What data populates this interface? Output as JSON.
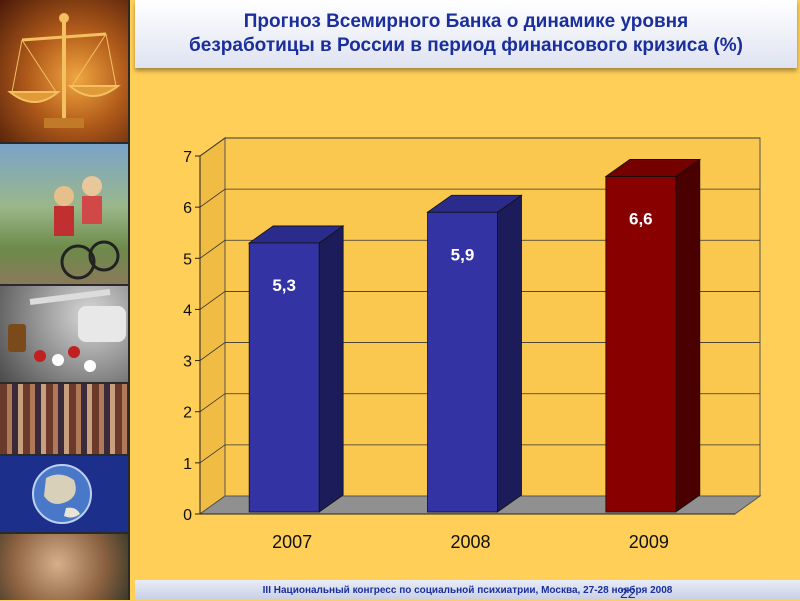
{
  "title": "Прогноз Всемирного Банка о динамике уровня\nбезработицы в России в период финансового кризиса (%)",
  "footer": "III Национальный конгресс по социальной психиатрии, Москва, 27-28 ноября 2008",
  "page_number": "22",
  "sidebar_images": [
    "scales-of-justice",
    "children-on-bicycle",
    "pills-and-syringe",
    "crowd-of-people",
    "earth-globe",
    "joined-hands"
  ],
  "colors": {
    "background": "#ffcf57",
    "title_text": "#1a2f9c",
    "bar_blue": "#3333a3",
    "bar_red": "#880000",
    "plot_wall": "#fac84f",
    "floor": "#909090"
  },
  "chart_data": {
    "type": "bar",
    "categories": [
      "2007",
      "2008",
      "2009"
    ],
    "values": [
      5.3,
      5.9,
      6.6
    ],
    "data_labels": [
      "5,3",
      "5,9",
      "6,6"
    ],
    "colors": [
      "#3333a3",
      "#3333a3",
      "#880000"
    ],
    "ylim": [
      0,
      7
    ],
    "yticks": [
      "0",
      "1",
      "2",
      "3",
      "4",
      "5",
      "6",
      "7"
    ],
    "grid": true,
    "style": "3d-bar",
    "legend": "none"
  }
}
